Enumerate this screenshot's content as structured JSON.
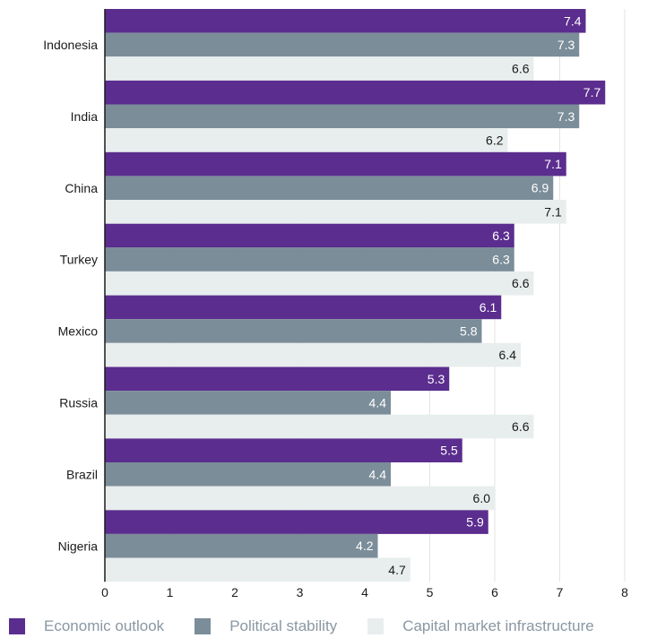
{
  "chart_data": {
    "type": "bar",
    "orientation": "horizontal",
    "categories": [
      "Indonesia",
      "India",
      "China",
      "Turkey",
      "Mexico",
      "Russia",
      "Brazil",
      "Nigeria"
    ],
    "series": [
      {
        "name": "Economic outlook",
        "color": "#5b2d8e",
        "label_color": "#ffffff",
        "values": [
          7.4,
          7.7,
          7.1,
          6.3,
          6.1,
          5.3,
          5.5,
          5.9
        ]
      },
      {
        "name": "Political stability",
        "color": "#7b8d99",
        "label_color": "#ffffff",
        "values": [
          7.3,
          7.3,
          6.9,
          6.3,
          5.8,
          4.4,
          4.4,
          4.2
        ]
      },
      {
        "name": "Capital market infrastructure",
        "color": "#e8edee",
        "label_color": "#1a1a1a",
        "values": [
          6.6,
          6.2,
          7.1,
          6.6,
          6.4,
          6.6,
          6.0,
          4.7
        ]
      }
    ],
    "value_labels": [
      [
        "7.4",
        "7.7",
        "7.1",
        "6.3",
        "6.1",
        "5.3",
        "5.5",
        "5.9"
      ],
      [
        "7.3",
        "7.3",
        "6.9",
        "6.3",
        "5.8",
        "4.4",
        "4.4",
        "4.2"
      ],
      [
        "6.6",
        "6.2",
        "7.1",
        "6.6",
        "6.4",
        "6.6",
        "6.0",
        "4.7"
      ]
    ],
    "xlim": [
      0,
      8
    ],
    "xticks": [
      "0",
      "1",
      "2",
      "3",
      "4",
      "5",
      "6",
      "7",
      "8"
    ],
    "grid": true,
    "legend_position": "bottom",
    "title": "",
    "xlabel": "",
    "ylabel": ""
  }
}
